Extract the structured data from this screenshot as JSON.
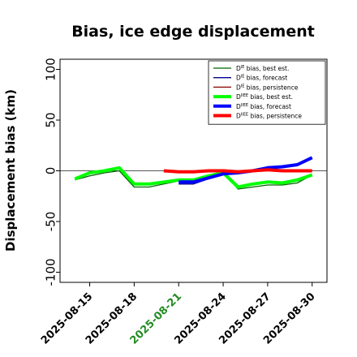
{
  "chart_data": {
    "type": "line",
    "title": "Bias, ice edge displacement",
    "xlabel": "",
    "ylabel": "Displacement bias (km)",
    "ylim": [
      -110,
      110
    ],
    "xlim_dates": [
      "2025-08-13",
      "2025-08-31"
    ],
    "yticks": [
      -100,
      -50,
      0,
      50,
      100
    ],
    "ytick_labels": [
      "-100",
      "-50",
      "0",
      "50",
      "100"
    ],
    "xtick_dates": [
      "2025-08-15",
      "2025-08-18",
      "2025-08-21",
      "2025-08-24",
      "2025-08-27",
      "2025-08-30"
    ],
    "xtick_labels": [
      "2025-08-15",
      "2025-08-18",
      "2025-08-21",
      "2025-08-24",
      "2025-08-27",
      "2025-08-30"
    ],
    "xtick_colors": [
      "#000000",
      "#000000",
      "#228B22",
      "#000000",
      "#000000",
      "#000000"
    ],
    "reference_line": 0,
    "grid": false,
    "legend_position": "top-right",
    "series": [
      {
        "name": "D^IE bias, best est.",
        "legend_sup": "IE",
        "legend_rest": " bias, best est.",
        "color": "#006400",
        "thick": false,
        "x": [
          "2025-08-14",
          "2025-08-15",
          "2025-08-16",
          "2025-08-17",
          "2025-08-18",
          "2025-08-19",
          "2025-08-20",
          "2025-08-21",
          "2025-08-22",
          "2025-08-23",
          "2025-08-24",
          "2025-08-25",
          "2025-08-26",
          "2025-08-27",
          "2025-08-28",
          "2025-08-29",
          "2025-08-30"
        ],
        "values": [
          -9,
          -5,
          -2,
          0,
          -16,
          -16,
          -13,
          -10,
          -10,
          -5,
          -1,
          -18,
          -16,
          -14,
          -14,
          -12,
          -4
        ]
      },
      {
        "name": "D^IE bias, forecast",
        "legend_sup": "IE",
        "legend_rest": " bias, forecast",
        "color": "#00008B",
        "thick": false,
        "x": [
          "2025-08-21",
          "2025-08-22",
          "2025-08-23",
          "2025-08-24",
          "2025-08-25",
          "2025-08-26",
          "2025-08-27",
          "2025-08-28",
          "2025-08-29",
          "2025-08-30"
        ],
        "values": [
          -13,
          -13,
          -8,
          -3,
          -2,
          0,
          4,
          4,
          7,
          13
        ]
      },
      {
        "name": "D^IE bias, persistence",
        "legend_sup": "IE",
        "legend_rest": " bias, persistence",
        "color": "#8B0000",
        "thick": false,
        "x": [
          "2025-08-20",
          "2025-08-21",
          "2025-08-22",
          "2025-08-23",
          "2025-08-24",
          "2025-08-25",
          "2025-08-26",
          "2025-08-27",
          "2025-08-28",
          "2025-08-29",
          "2025-08-30"
        ],
        "values": [
          -1,
          -1,
          -1,
          0,
          1,
          0,
          0,
          1,
          0,
          0,
          0
        ]
      },
      {
        "name": "D^IIEE bias, best est.",
        "legend_sup": "IIEE",
        "legend_rest": " bias, best est.",
        "color": "#00FF00",
        "thick": true,
        "x": [
          "2025-08-14",
          "2025-08-15",
          "2025-08-16",
          "2025-08-17",
          "2025-08-18",
          "2025-08-19",
          "2025-08-20",
          "2025-08-21",
          "2025-08-22",
          "2025-08-23",
          "2025-08-24",
          "2025-08-25",
          "2025-08-26",
          "2025-08-27",
          "2025-08-28",
          "2025-08-29",
          "2025-08-30"
        ],
        "values": [
          -8,
          -2,
          0,
          3,
          -13,
          -13,
          -11,
          -9,
          -9,
          -5,
          -2,
          -16,
          -13,
          -11,
          -12,
          -9,
          -4
        ]
      },
      {
        "name": "D^IIEE bias, forecast",
        "legend_sup": "IIEE",
        "legend_rest": " bias, forecast",
        "color": "#0000FF",
        "thick": true,
        "x": [
          "2025-08-21",
          "2025-08-22",
          "2025-08-23",
          "2025-08-24",
          "2025-08-25",
          "2025-08-26",
          "2025-08-27",
          "2025-08-28",
          "2025-08-29",
          "2025-08-30"
        ],
        "values": [
          -11,
          -11,
          -7,
          -3,
          -2,
          0,
          3,
          4,
          6,
          13
        ]
      },
      {
        "name": "D^IIEE bias, persistence",
        "legend_sup": "IIEE",
        "legend_rest": " bias, persistence",
        "color": "#FF0000",
        "thick": true,
        "x": [
          "2025-08-20",
          "2025-08-21",
          "2025-08-22",
          "2025-08-23",
          "2025-08-24",
          "2025-08-25",
          "2025-08-26",
          "2025-08-27",
          "2025-08-28",
          "2025-08-29",
          "2025-08-30"
        ],
        "values": [
          0,
          -1,
          -1,
          0,
          0,
          -1,
          0,
          1,
          0,
          0,
          0
        ]
      }
    ]
  }
}
